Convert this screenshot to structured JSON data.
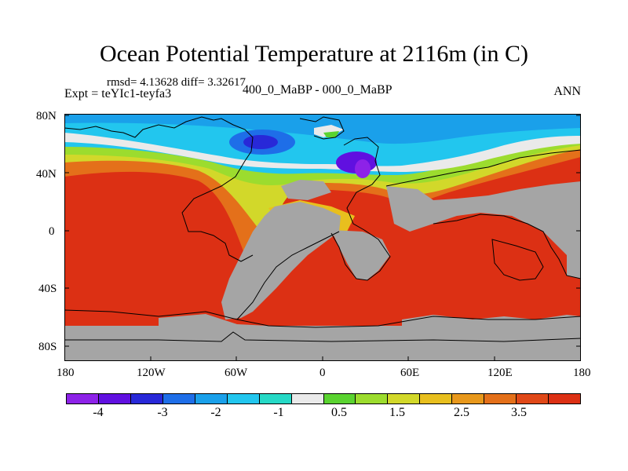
{
  "title": "Ocean Potential Temperature at 2116m (in C)",
  "stats": "rmsd= 4.13628 diff= 3.32617",
  "experiment": "Expt = teYIc1-teyfa3",
  "comparison": "400_0_MaBP - 000_0_MaBP",
  "season": "ANN",
  "lat_labels": [
    "80N",
    "40N",
    "0",
    "40S",
    "80S"
  ],
  "lon_labels": [
    "180",
    "120W",
    "60W",
    "0",
    "60E",
    "120E",
    "180"
  ],
  "colorbar": {
    "colors": [
      "#8d22e8",
      "#6010e0",
      "#2828d8",
      "#1e6ee8",
      "#1aa0ea",
      "#22c6ee",
      "#26d9c6",
      "#eaeaea",
      "#5ad330",
      "#9cdc2e",
      "#d2d82a",
      "#e8bf1e",
      "#e8981c",
      "#e4701a",
      "#e04818",
      "#dc3014"
    ],
    "labels": [
      "-4",
      "-3",
      "-2",
      "-1",
      "0.5",
      "1.5",
      "2.5",
      "3.5"
    ]
  },
  "map_legend": {
    "land_fill": "#a5a5a5",
    "warm_fill": "#dc3014"
  }
}
